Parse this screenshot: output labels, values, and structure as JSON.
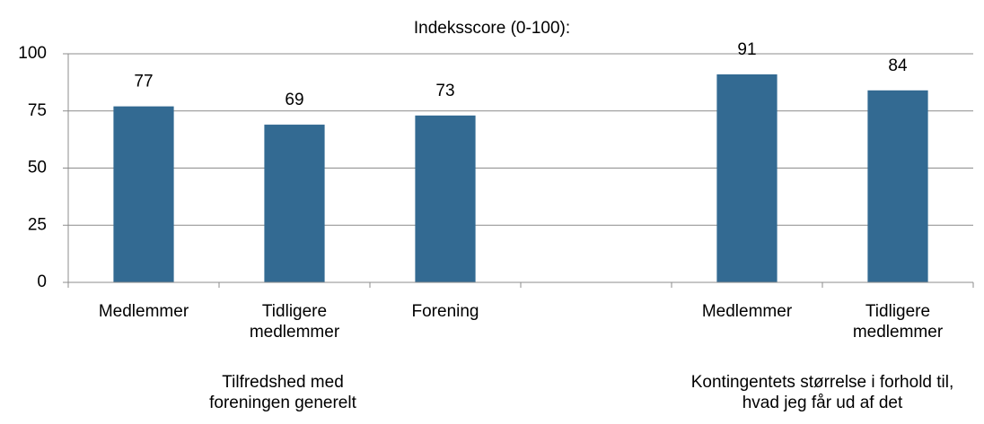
{
  "chart_data": {
    "type": "bar",
    "title": "Indeksscore (0-100):",
    "categories": [
      "Medlemmer",
      "Tidligere medlemmer",
      "Forening",
      null,
      "Medlemmer",
      "Tidligere medlemmer"
    ],
    "values": [
      77,
      69,
      73,
      null,
      91,
      84
    ],
    "groups": [
      {
        "label": "Tilfredshed med foreningen generelt",
        "categories": [
          0,
          1,
          2
        ]
      },
      {
        "label": "Kontingentets størrelse i forhold til, hvad jeg får ud af det",
        "categories": [
          4,
          5
        ]
      }
    ],
    "color": "#336a92",
    "ylim": [
      0,
      100
    ],
    "yticks": [
      0,
      25,
      50,
      75,
      100
    ],
    "grid": true
  }
}
